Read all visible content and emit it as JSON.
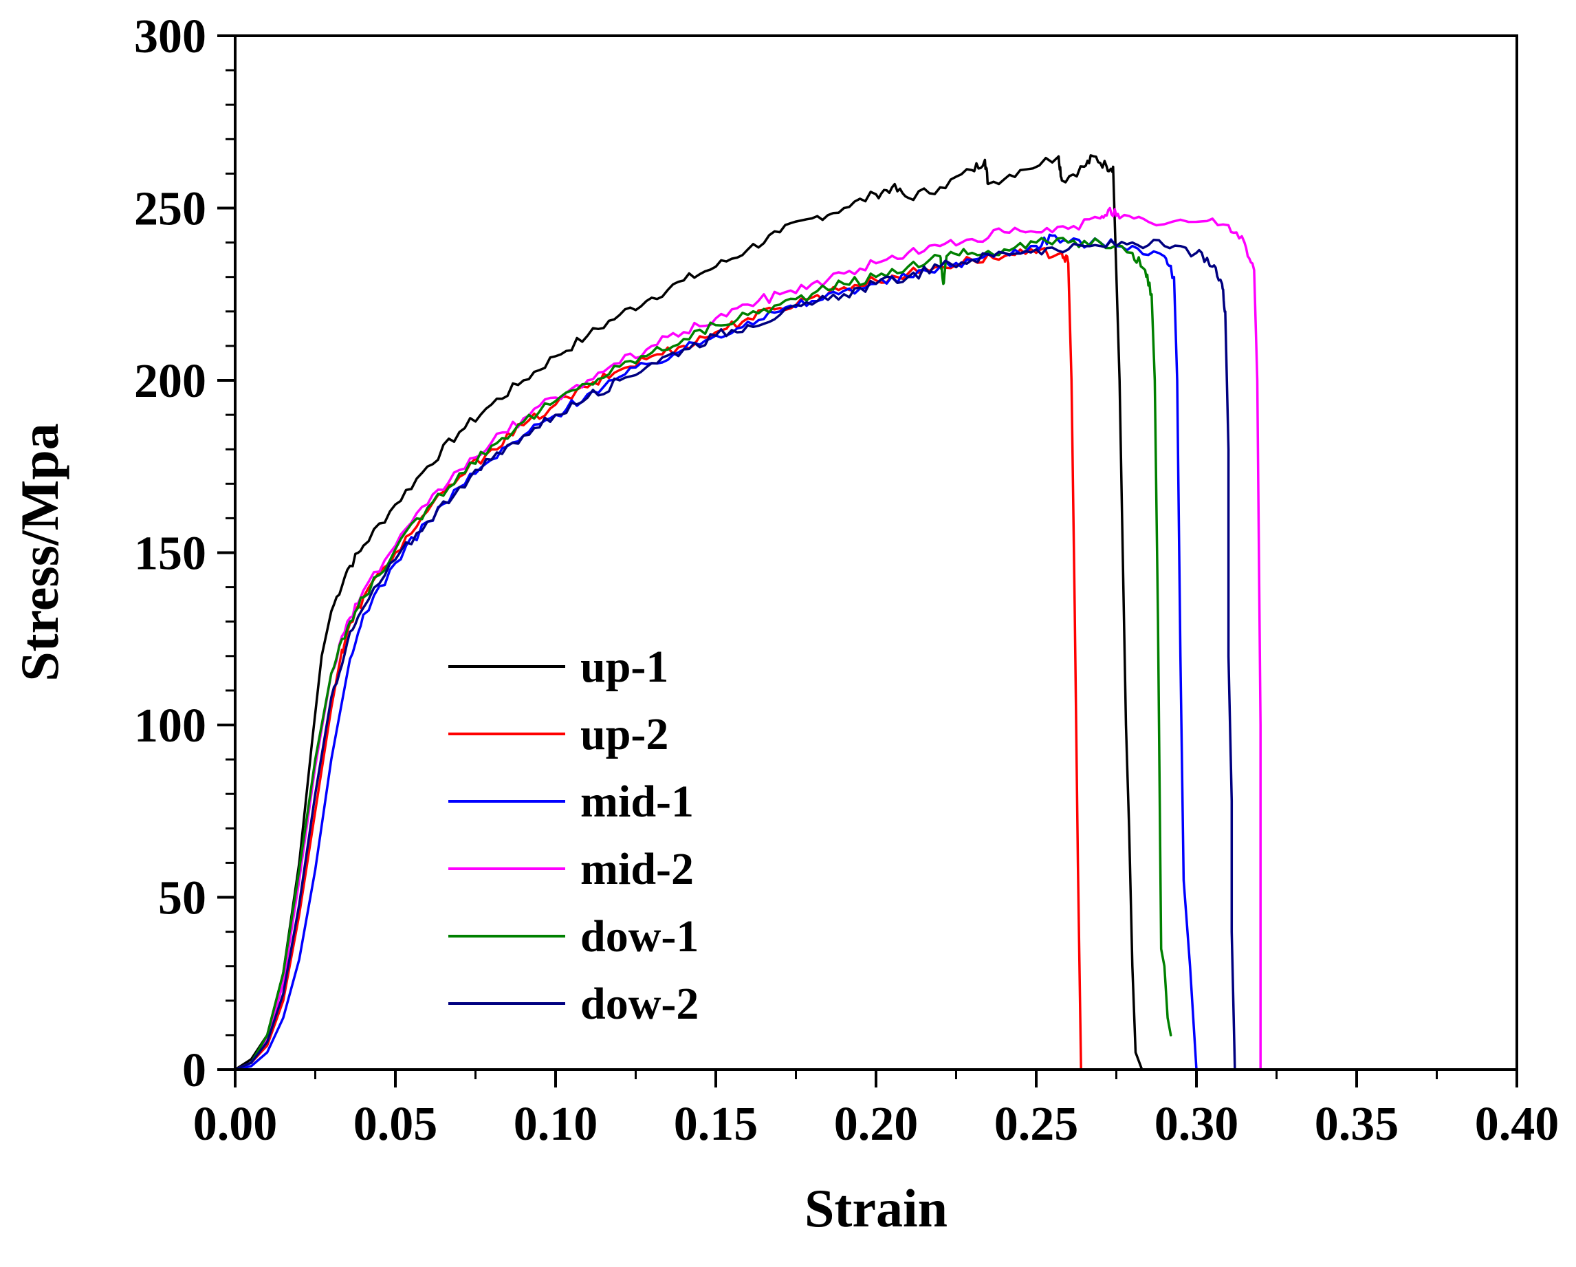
{
  "chart_data": {
    "type": "line",
    "title": "",
    "xlabel": "Strain",
    "ylabel": "Stress/Mpa",
    "xlim": [
      0.0,
      0.4
    ],
    "ylim": [
      0,
      300
    ],
    "xticks": [
      "0.00",
      "0.05",
      "0.10",
      "0.15",
      "0.20",
      "0.25",
      "0.30",
      "0.35",
      "0.40"
    ],
    "yticks": [
      "0",
      "50",
      "100",
      "150",
      "200",
      "250",
      "300"
    ],
    "legend_position": "center-left",
    "series": [
      {
        "name": "up-1",
        "color": "#000000",
        "points": [
          [
            0.0,
            0
          ],
          [
            0.005,
            3
          ],
          [
            0.01,
            10
          ],
          [
            0.015,
            28
          ],
          [
            0.02,
            60
          ],
          [
            0.024,
            95
          ],
          [
            0.027,
            120
          ],
          [
            0.03,
            133
          ],
          [
            0.035,
            145
          ],
          [
            0.04,
            152
          ],
          [
            0.05,
            164
          ],
          [
            0.06,
            175
          ],
          [
            0.07,
            185
          ],
          [
            0.08,
            193
          ],
          [
            0.09,
            200
          ],
          [
            0.1,
            207
          ],
          [
            0.11,
            213
          ],
          [
            0.12,
            219
          ],
          [
            0.13,
            224
          ],
          [
            0.14,
            229
          ],
          [
            0.15,
            233
          ],
          [
            0.16,
            238
          ],
          [
            0.17,
            243
          ],
          [
            0.18,
            247
          ],
          [
            0.19,
            250
          ],
          [
            0.2,
            254
          ],
          [
            0.205,
            256
          ],
          [
            0.21,
            253
          ],
          [
            0.22,
            256
          ],
          [
            0.23,
            261
          ],
          [
            0.234,
            264
          ],
          [
            0.235,
            257
          ],
          [
            0.245,
            261
          ],
          [
            0.257,
            265
          ],
          [
            0.258,
            258
          ],
          [
            0.265,
            262
          ],
          [
            0.268,
            265
          ],
          [
            0.272,
            262
          ],
          [
            0.274,
            262
          ],
          [
            0.276,
            200
          ],
          [
            0.277,
            150
          ],
          [
            0.278,
            100
          ],
          [
            0.279,
            70
          ],
          [
            0.28,
            30
          ],
          [
            0.281,
            5
          ],
          [
            0.283,
            0
          ]
        ]
      },
      {
        "name": "up-2",
        "color": "#ff0000",
        "points": [
          [
            0.0,
            0
          ],
          [
            0.005,
            2
          ],
          [
            0.01,
            7
          ],
          [
            0.015,
            20
          ],
          [
            0.02,
            45
          ],
          [
            0.025,
            75
          ],
          [
            0.03,
            105
          ],
          [
            0.033,
            120
          ],
          [
            0.035,
            127
          ],
          [
            0.04,
            137
          ],
          [
            0.05,
            150
          ],
          [
            0.06,
            162
          ],
          [
            0.07,
            172
          ],
          [
            0.08,
            180
          ],
          [
            0.09,
            187
          ],
          [
            0.1,
            193
          ],
          [
            0.11,
            198
          ],
          [
            0.12,
            203
          ],
          [
            0.13,
            207
          ],
          [
            0.14,
            210
          ],
          [
            0.15,
            214
          ],
          [
            0.16,
            218
          ],
          [
            0.17,
            221
          ],
          [
            0.18,
            224
          ],
          [
            0.19,
            227
          ],
          [
            0.2,
            229
          ],
          [
            0.21,
            231
          ],
          [
            0.22,
            233
          ],
          [
            0.23,
            235
          ],
          [
            0.24,
            236
          ],
          [
            0.25,
            237
          ],
          [
            0.258,
            237
          ],
          [
            0.26,
            234
          ],
          [
            0.261,
            200
          ],
          [
            0.262,
            135
          ],
          [
            0.263,
            60
          ],
          [
            0.264,
            0
          ]
        ]
      },
      {
        "name": "mid-1",
        "color": "#0000ff",
        "points": [
          [
            0.0,
            0
          ],
          [
            0.005,
            1
          ],
          [
            0.01,
            5
          ],
          [
            0.015,
            15
          ],
          [
            0.02,
            32
          ],
          [
            0.025,
            58
          ],
          [
            0.03,
            90
          ],
          [
            0.035,
            115
          ],
          [
            0.04,
            132
          ],
          [
            0.05,
            147
          ],
          [
            0.06,
            159
          ],
          [
            0.07,
            169
          ],
          [
            0.08,
            177
          ],
          [
            0.09,
            184
          ],
          [
            0.1,
            190
          ],
          [
            0.11,
            196
          ],
          [
            0.12,
            201
          ],
          [
            0.13,
            205
          ],
          [
            0.14,
            209
          ],
          [
            0.15,
            213
          ],
          [
            0.16,
            217
          ],
          [
            0.17,
            220
          ],
          [
            0.18,
            223
          ],
          [
            0.19,
            226
          ],
          [
            0.2,
            228
          ],
          [
            0.21,
            230
          ],
          [
            0.22,
            233
          ],
          [
            0.23,
            235
          ],
          [
            0.24,
            237
          ],
          [
            0.25,
            239
          ],
          [
            0.255,
            242
          ],
          [
            0.26,
            240
          ],
          [
            0.27,
            240
          ],
          [
            0.28,
            239
          ],
          [
            0.29,
            236
          ],
          [
            0.293,
            230
          ],
          [
            0.294,
            200
          ],
          [
            0.295,
            120
          ],
          [
            0.296,
            55
          ],
          [
            0.298,
            30
          ],
          [
            0.3,
            0
          ]
        ]
      },
      {
        "name": "mid-2",
        "color": "#ff00ff",
        "points": [
          [
            0.0,
            0
          ],
          [
            0.005,
            2
          ],
          [
            0.01,
            9
          ],
          [
            0.015,
            25
          ],
          [
            0.02,
            55
          ],
          [
            0.025,
            88
          ],
          [
            0.03,
            115
          ],
          [
            0.035,
            130
          ],
          [
            0.04,
            139
          ],
          [
            0.05,
            152
          ],
          [
            0.06,
            164
          ],
          [
            0.07,
            174
          ],
          [
            0.08,
            182
          ],
          [
            0.09,
            189
          ],
          [
            0.1,
            195
          ],
          [
            0.11,
            200
          ],
          [
            0.12,
            205
          ],
          [
            0.13,
            210
          ],
          [
            0.14,
            214
          ],
          [
            0.15,
            218
          ],
          [
            0.16,
            222
          ],
          [
            0.17,
            225
          ],
          [
            0.18,
            228
          ],
          [
            0.19,
            231
          ],
          [
            0.2,
            234
          ],
          [
            0.21,
            237
          ],
          [
            0.22,
            239
          ],
          [
            0.23,
            241
          ],
          [
            0.24,
            243
          ],
          [
            0.25,
            243
          ],
          [
            0.26,
            244
          ],
          [
            0.27,
            247
          ],
          [
            0.273,
            250
          ],
          [
            0.276,
            247
          ],
          [
            0.285,
            246
          ],
          [
            0.3,
            246
          ],
          [
            0.31,
            245
          ],
          [
            0.315,
            240
          ],
          [
            0.318,
            232
          ],
          [
            0.319,
            200
          ],
          [
            0.32,
            100
          ],
          [
            0.32,
            0
          ]
        ]
      },
      {
        "name": "dow-1",
        "color": "#008000",
        "points": [
          [
            0.0,
            0
          ],
          [
            0.005,
            2
          ],
          [
            0.01,
            10
          ],
          [
            0.015,
            28
          ],
          [
            0.02,
            58
          ],
          [
            0.025,
            90
          ],
          [
            0.03,
            115
          ],
          [
            0.035,
            128
          ],
          [
            0.04,
            137
          ],
          [
            0.05,
            151
          ],
          [
            0.06,
            163
          ],
          [
            0.07,
            173
          ],
          [
            0.08,
            181
          ],
          [
            0.09,
            188
          ],
          [
            0.1,
            194
          ],
          [
            0.11,
            199
          ],
          [
            0.12,
            204
          ],
          [
            0.13,
            208
          ],
          [
            0.14,
            212
          ],
          [
            0.15,
            216
          ],
          [
            0.16,
            219
          ],
          [
            0.17,
            222
          ],
          [
            0.18,
            225
          ],
          [
            0.19,
            228
          ],
          [
            0.2,
            230
          ],
          [
            0.21,
            233
          ],
          [
            0.22,
            236
          ],
          [
            0.221,
            228
          ],
          [
            0.222,
            236
          ],
          [
            0.23,
            237
          ],
          [
            0.24,
            238
          ],
          [
            0.25,
            240
          ],
          [
            0.26,
            240
          ],
          [
            0.27,
            240
          ],
          [
            0.28,
            237
          ],
          [
            0.284,
            232
          ],
          [
            0.286,
            225
          ],
          [
            0.287,
            200
          ],
          [
            0.288,
            130
          ],
          [
            0.289,
            35
          ],
          [
            0.29,
            30
          ],
          [
            0.291,
            15
          ],
          [
            0.292,
            10
          ]
        ]
      },
      {
        "name": "dow-2",
        "color": "#000080",
        "points": [
          [
            0.0,
            0
          ],
          [
            0.005,
            2
          ],
          [
            0.01,
            8
          ],
          [
            0.015,
            22
          ],
          [
            0.02,
            48
          ],
          [
            0.025,
            80
          ],
          [
            0.03,
            108
          ],
          [
            0.035,
            124
          ],
          [
            0.04,
            134
          ],
          [
            0.05,
            148
          ],
          [
            0.06,
            159
          ],
          [
            0.07,
            169
          ],
          [
            0.08,
            177
          ],
          [
            0.09,
            184
          ],
          [
            0.1,
            190
          ],
          [
            0.11,
            195
          ],
          [
            0.12,
            200
          ],
          [
            0.13,
            205
          ],
          [
            0.14,
            209
          ],
          [
            0.15,
            213
          ],
          [
            0.16,
            216
          ],
          [
            0.17,
            219
          ],
          [
            0.18,
            222
          ],
          [
            0.19,
            225
          ],
          [
            0.2,
            228
          ],
          [
            0.21,
            230
          ],
          [
            0.22,
            233
          ],
          [
            0.23,
            235
          ],
          [
            0.24,
            237
          ],
          [
            0.25,
            238
          ],
          [
            0.26,
            238
          ],
          [
            0.27,
            239
          ],
          [
            0.28,
            240
          ],
          [
            0.29,
            239
          ],
          [
            0.3,
            237
          ],
          [
            0.305,
            233
          ],
          [
            0.308,
            228
          ],
          [
            0.309,
            220
          ],
          [
            0.31,
            180
          ],
          [
            0.31,
            120
          ],
          [
            0.311,
            78
          ],
          [
            0.311,
            40
          ],
          [
            0.312,
            0
          ]
        ]
      }
    ]
  }
}
